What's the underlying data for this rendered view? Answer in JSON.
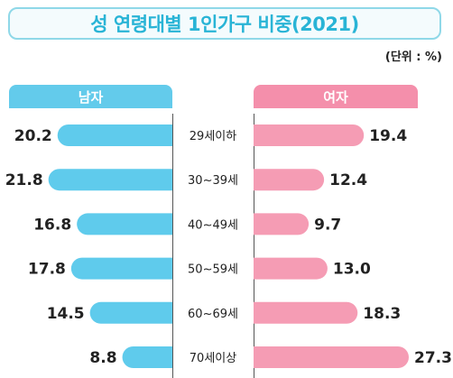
{
  "title": "성 연령대별 1인가구 비중(2021)",
  "unit": "(단위 : %)",
  "colors": {
    "male": "#5fcbec",
    "female": "#f59cb4",
    "title": "#29b4d6"
  },
  "chart_data": {
    "type": "bar",
    "orientation": "horizontal-butterfly",
    "categories": [
      "29세이하",
      "30~39세",
      "40~49세",
      "50~59세",
      "60~69세",
      "70세이상"
    ],
    "series": [
      {
        "name": "남자",
        "values": [
          20.2,
          21.8,
          16.8,
          17.8,
          14.5,
          8.8
        ]
      },
      {
        "name": "여자",
        "values": [
          19.4,
          12.4,
          9.7,
          13.0,
          18.3,
          27.3
        ]
      }
    ]
  }
}
